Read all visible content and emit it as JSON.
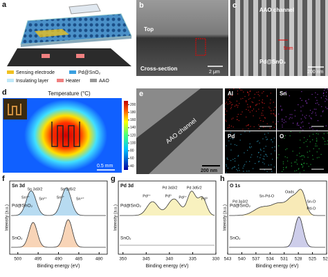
{
  "panels": {
    "a": {
      "label": "a",
      "legend": [
        "Sensing electrode",
        "Pd@SnO₂",
        "Insulating layer",
        "Heater",
        "AAO"
      ]
    },
    "b": {
      "label": "b",
      "top": "Top",
      "side": "Cross-section",
      "scale_bar": "2 μm"
    },
    "c": {
      "label": "c",
      "channel": "AAO channel",
      "material": "Pd@SnO₂",
      "thickness": "5nm",
      "scale_bar": "200 nm"
    },
    "d": {
      "label": "d",
      "title": "Temperature (°C)",
      "cbar_lim": [
        30,
        210
      ],
      "cbar_ticks": [
        200,
        180,
        160,
        140,
        120,
        100,
        80,
        60,
        40
      ],
      "scale_bar": "0.5 mm"
    },
    "e": {
      "label": "e",
      "channel": "AAO channel",
      "scale_bar": "200 nm",
      "maps": [
        "Al",
        "Sn",
        "Pd",
        "O"
      ]
    },
    "f": {
      "label": "f",
      "title": "Sn 3d",
      "samples": [
        "Pd@SnO₂",
        "SnO₂"
      ],
      "peaks": [
        "Sn 3d3/2",
        "Sn 3d5/2",
        "Sn⁴⁺",
        "Sn²⁺",
        "Sn²⁺",
        "Sn⁴⁺"
      ],
      "xlabel": "Binding energy (eV)",
      "ylabel": "Intensity (a.u.)",
      "xlim": [
        502,
        478
      ],
      "xticks": [
        500,
        495,
        490,
        485,
        480
      ]
    },
    "g": {
      "label": "g",
      "title": "Pd 3d",
      "samples": [
        "Pd@SnO₂",
        "SnO₂"
      ],
      "peaks": [
        "Pd 3d3/2",
        "Pd 3d5/2",
        "Pd²⁺",
        "Pd⁰",
        "Pd²⁺",
        "Pd⁰"
      ],
      "xlabel": "Binding energy (eV)",
      "ylabel": "Intensity (a.u.)",
      "xlim": [
        351,
        330
      ],
      "xticks": [
        350,
        345,
        340,
        335,
        330
      ]
    },
    "h": {
      "label": "h",
      "title": "O 1s",
      "samples": [
        "Pd@SnO₂",
        "SnO₂"
      ],
      "peaks": [
        "Pd 3p3/2",
        "Sn-Pd-O",
        "Oads",
        "Sn-O",
        "Pd-O"
      ],
      "xlabel": "Binding energy (eV)",
      "ylabel": "Intensity (a.u.)",
      "xlim": [
        543,
        522
      ],
      "xticks": [
        543,
        540,
        537,
        534,
        531,
        528,
        525,
        522
      ]
    }
  }
}
